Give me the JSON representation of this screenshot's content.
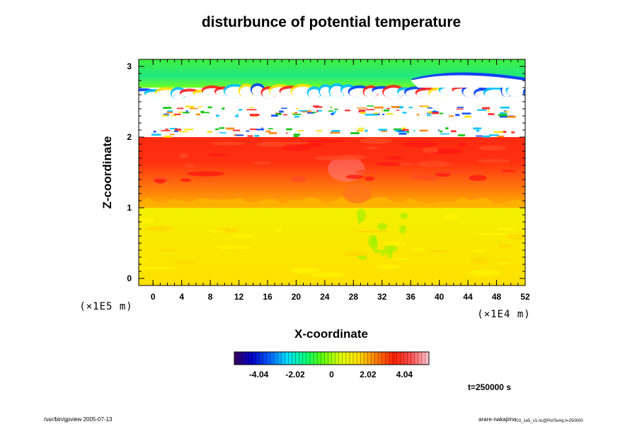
{
  "chart_data": {
    "type": "heatmap",
    "title": "disturbunce of potential temperature",
    "xlabel": "X-coordinate",
    "ylabel": "Z-coordinate",
    "x_scale_label": "(×1E4 m)",
    "y_scale_label": "(×1E5 m)",
    "xlim": [
      -2,
      52
    ],
    "ylim": [
      -0.1,
      3.1
    ],
    "x_ticks": [
      "0",
      "4",
      "8",
      "12",
      "16",
      "20",
      "24",
      "28",
      "32",
      "36",
      "40",
      "44",
      "48",
      "52"
    ],
    "y_ticks": [
      "0",
      "1",
      "2",
      "3"
    ],
    "colorbar": {
      "range": [
        -5.4,
        5.4
      ],
      "ticks": [
        "-4.04",
        "-2.02",
        "0",
        "2.02",
        "4.04"
      ],
      "colors": [
        "#3a0060",
        "#0000c8",
        "#0060ff",
        "#00e0ff",
        "#00ff80",
        "#60ff00",
        "#e0ff00",
        "#ffe000",
        "#ff8000",
        "#ff2000",
        "#ff5050",
        "#ffc8d0"
      ]
    },
    "regions": [
      {
        "z_range": [
          -0.1,
          1.0
        ],
        "value": 2.8,
        "description": "yellow"
      },
      {
        "z_range": [
          1.0,
          1.35
        ],
        "value": 3.6,
        "description": "orange"
      },
      {
        "z_range": [
          1.35,
          2.0
        ],
        "value": 4.3,
        "description": "red"
      },
      {
        "z_range": [
          2.0,
          2.7
        ],
        "value": null,
        "description": "white/undefined"
      },
      {
        "z_range": [
          2.7,
          3.1
        ],
        "value": 0.8,
        "description": "green"
      }
    ]
  },
  "annotations": {
    "time": "t=250000 s"
  },
  "footer": {
    "left": "/usr/bin/gpview 2005-07-13",
    "right_main": "arare-nakajima",
    "right_sub": "03_1e5_v1.nc@PotTemp,t=250000"
  }
}
